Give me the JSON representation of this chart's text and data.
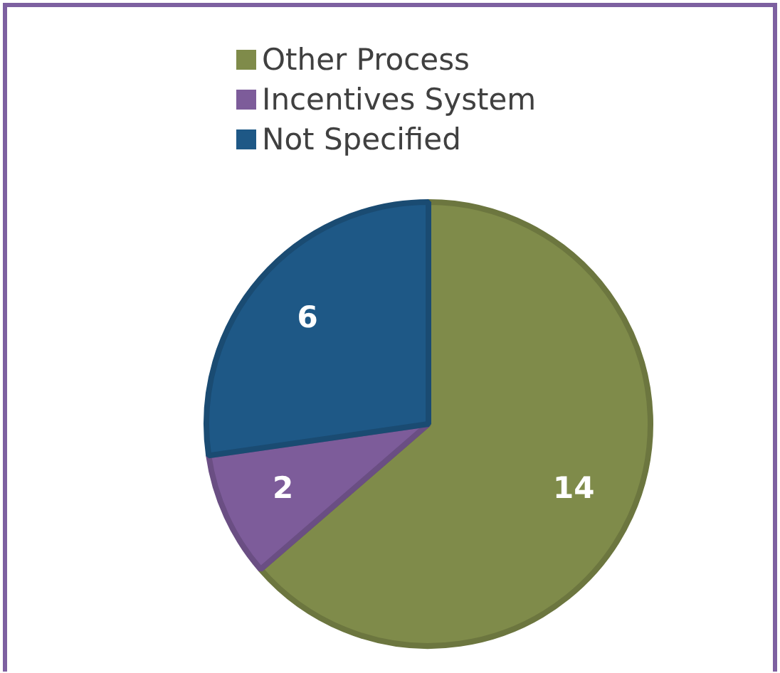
{
  "chart_data": {
    "type": "pie",
    "categories": [
      "Other Process",
      "Incentives System",
      "Not Specified"
    ],
    "values": [
      14,
      2,
      6
    ],
    "colors": [
      "#7f8b4a",
      "#7d5c9a",
      "#1e5886"
    ],
    "legend": "top",
    "data_labels": true
  }
}
